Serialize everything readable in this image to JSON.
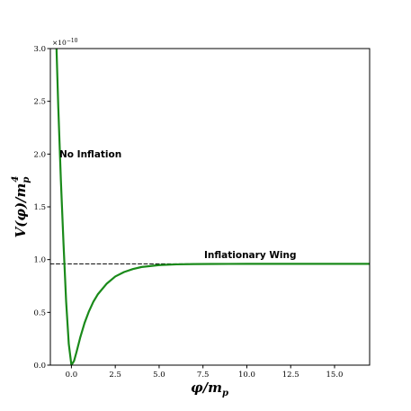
{
  "chart_data": {
    "type": "line",
    "title": "",
    "xlabel": "φ/m",
    "xlabel_sub": "p",
    "ylabel": "V(φ)/m",
    "ylabel_sub": "p",
    "ylabel_sup": "4",
    "y_scale_text": "×10",
    "y_scale_exp": "−10",
    "xlim": [
      -1.2,
      17.0
    ],
    "ylim": [
      0.0,
      3.0
    ],
    "x_ticks": [
      0.0,
      2.5,
      5.0,
      7.5,
      10.0,
      12.5,
      15.0
    ],
    "x_tick_labels": [
      "0.0",
      "2.5",
      "5.0",
      "7.5",
      "10.0",
      "12.5",
      "15.0"
    ],
    "y_ticks": [
      0.0,
      0.5,
      1.0,
      1.5,
      2.0,
      2.5,
      3.0
    ],
    "y_tick_labels": [
      "0.0",
      "0.5",
      "1.0",
      "1.5",
      "2.0",
      "2.5",
      "3.0"
    ],
    "grid": false,
    "legend": "none",
    "series": [
      {
        "color": "#1a8a1a",
        "style": "solid",
        "x": [
          -0.85,
          -0.75,
          -0.6,
          -0.45,
          -0.3,
          -0.15,
          0.0,
          0.15,
          0.3,
          0.5,
          0.75,
          1.0,
          1.25,
          1.5,
          2.0,
          2.5,
          3.0,
          3.5,
          4.0,
          5.0,
          6.0,
          7.0,
          8.0,
          10.0,
          12.0,
          14.0,
          17.0
        ],
        "y": [
          3.0,
          2.45,
          1.75,
          1.15,
          0.6,
          0.2,
          0.0,
          0.04,
          0.13,
          0.26,
          0.4,
          0.51,
          0.6,
          0.67,
          0.77,
          0.84,
          0.882,
          0.91,
          0.93,
          0.948,
          0.955,
          0.958,
          0.959,
          0.96,
          0.96,
          0.96,
          0.96
        ]
      },
      {
        "color": "#000000",
        "style": "dashed",
        "x": [
          -1.2,
          17.0
        ],
        "y": [
          0.96,
          0.96
        ]
      }
    ],
    "annotations": [
      {
        "text": "No Inflation",
        "x": -0.85,
        "y": 2.0
      },
      {
        "text": "Inflationary Wing",
        "x": 8.6,
        "y": 1.07
      }
    ]
  }
}
